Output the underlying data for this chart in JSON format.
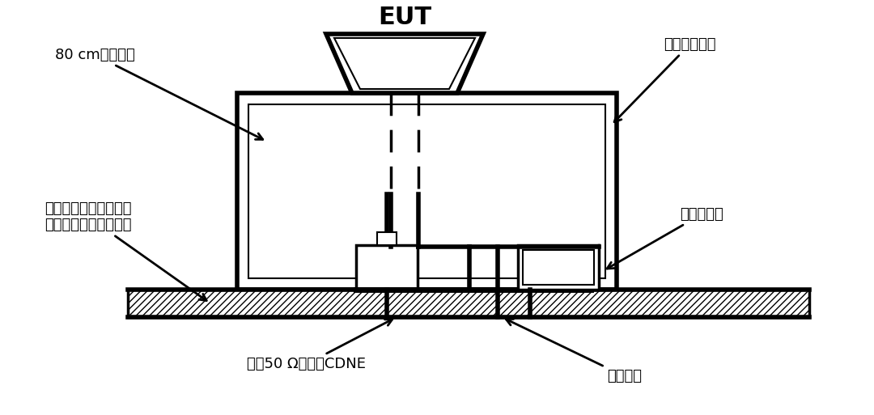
{
  "bg_color": "#ffffff",
  "line_color": "#000000",
  "labels": {
    "eut": "EUT",
    "cable": "80 cm电源线缆",
    "table": "非导电布置台",
    "ground": "参考接地平面或接触点\n（试验设备的一部分）",
    "detector": "存在探测器",
    "cdne": "端接50 Ω阻抗的CDNE",
    "power": "电源接点"
  },
  "eut_fontsize": 22,
  "label_fontsize": 13,
  "hatch_pattern": "////"
}
